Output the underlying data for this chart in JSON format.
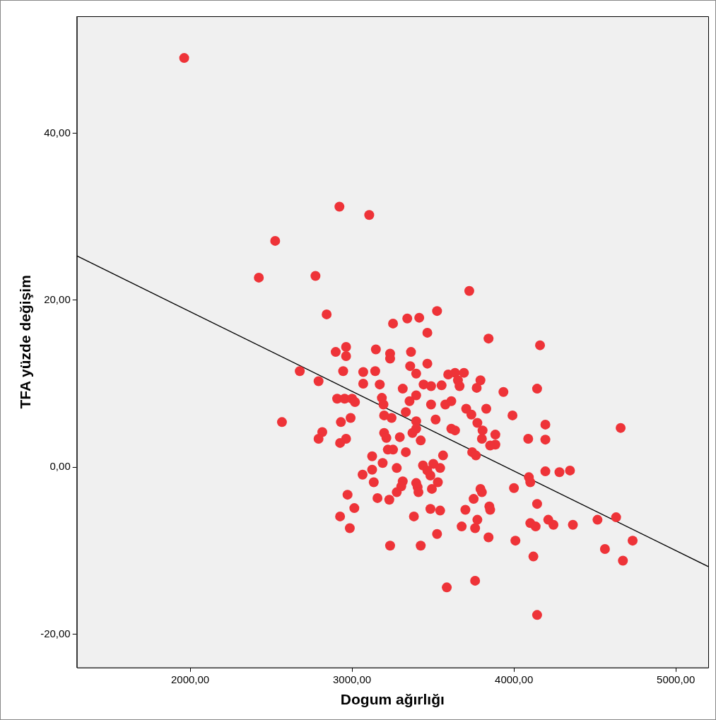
{
  "chart_data": {
    "type": "scatter",
    "xlabel": "Dogum ağırlığı",
    "ylabel": "TFA yüzde değişim",
    "xlim": [
      1300,
      5200
    ],
    "ylim": [
      -24,
      54
    ],
    "xticks": [
      {
        "value": 2000,
        "label": "2000,00"
      },
      {
        "value": 3000,
        "label": "3000,00"
      },
      {
        "value": 4000,
        "label": "4000,00"
      },
      {
        "value": 5000,
        "label": "5000,00"
      }
    ],
    "yticks": [
      {
        "value": -20,
        "label": "-20,00"
      },
      {
        "value": 0,
        "label": "0,00"
      },
      {
        "value": 20,
        "label": "20,00"
      },
      {
        "value": 40,
        "label": "40,00"
      }
    ],
    "legend": false,
    "marker": "circle",
    "series": [
      {
        "type": "scatter",
        "color": "#ee3338",
        "x": [
          1963,
          2922,
          3106,
          2525,
          2424,
          2774,
          3724,
          2843,
          3525,
          3253,
          3341,
          3415,
          3465,
          3843,
          4161,
          2963,
          2899,
          3147,
          3235,
          2963,
          3364,
          3235,
          3465,
          3359,
          2677,
          2945,
          3069,
          3143,
          3396,
          3594,
          3636,
          3691,
          3654,
          3793,
          2793,
          3069,
          3171,
          3442,
          3488,
          3553,
          3664,
          3770,
          4143,
          3935,
          3313,
          3396,
          3184,
          2908,
          2954,
          3000,
          3018,
          3355,
          3194,
          3488,
          3576,
          3613,
          3829,
          3705,
          3737,
          3991,
          3332,
          3198,
          3244,
          2567,
          2931,
          2991,
          3396,
          3516,
          3774,
          4194,
          3613,
          3198,
          2816,
          3373,
          3396,
          3806,
          3885,
          3636,
          2793,
          2963,
          3212,
          3295,
          3424,
          3802,
          4088,
          4194,
          2926,
          3885,
          3853,
          3221,
          3253,
          3332,
          3742,
          3765,
          3562,
          3124,
          3189,
          3438,
          3502,
          3276,
          3124,
          3465,
          3544,
          4194,
          4346,
          4281,
          3065,
          3484,
          4092,
          4101,
          3134,
          3313,
          3396,
          3530,
          3304,
          3405,
          3493,
          3793,
          4000,
          3276,
          3410,
          3802,
          2972,
          3157,
          3230,
          3751,
          4143,
          3848,
          3853,
          3014,
          3484,
          3544,
          3700,
          3382,
          2926,
          4631,
          3774,
          4516,
          4212,
          4101,
          4244,
          4364,
          4134,
          3677,
          3760,
          2986,
          3525,
          3843,
          4009,
          4733,
          3235,
          3424,
          4562,
          4120,
          4673,
          3760,
          3585,
          4143,
          4659
        ],
        "values": [
          49.0,
          31.2,
          30.2,
          27.1,
          22.7,
          22.9,
          21.1,
          18.3,
          18.7,
          17.2,
          17.8,
          17.9,
          16.1,
          15.4,
          14.6,
          14.4,
          13.8,
          14.1,
          13.6,
          13.3,
          13.8,
          13.0,
          12.4,
          12.1,
          11.5,
          11.5,
          11.4,
          11.5,
          11.2,
          11.1,
          11.3,
          11.3,
          10.4,
          10.4,
          10.3,
          10.0,
          9.9,
          9.9,
          9.7,
          9.8,
          9.7,
          9.5,
          9.4,
          9.0,
          9.4,
          8.6,
          8.3,
          8.2,
          8.2,
          8.2,
          7.8,
          7.9,
          7.5,
          7.5,
          7.5,
          7.9,
          7.0,
          7.0,
          6.3,
          6.2,
          6.6,
          6.2,
          5.9,
          5.4,
          5.4,
          5.9,
          5.5,
          5.7,
          5.3,
          5.1,
          4.6,
          4.1,
          4.2,
          4.1,
          4.6,
          4.4,
          3.9,
          4.4,
          3.4,
          3.4,
          3.5,
          3.6,
          3.2,
          3.4,
          3.4,
          3.3,
          2.9,
          2.7,
          2.6,
          2.1,
          2.1,
          1.8,
          1.8,
          1.4,
          1.4,
          1.3,
          0.5,
          0.2,
          0.4,
          -0.1,
          -0.3,
          -0.4,
          -0.1,
          -0.5,
          -0.4,
          -0.6,
          -0.9,
          -1.0,
          -1.2,
          -1.8,
          -1.8,
          -1.7,
          -1.9,
          -1.8,
          -2.3,
          -2.4,
          -2.6,
          -2.6,
          -2.5,
          -3.0,
          -3.0,
          -3.0,
          -3.3,
          -3.7,
          -3.9,
          -3.8,
          -4.4,
          -4.7,
          -5.1,
          -4.9,
          -5.0,
          -5.2,
          -5.1,
          -5.9,
          -5.9,
          -6.0,
          -6.3,
          -6.3,
          -6.3,
          -6.7,
          -6.9,
          -6.9,
          -7.1,
          -7.1,
          -7.3,
          -7.3,
          -8.0,
          -8.4,
          -8.8,
          -8.8,
          -9.4,
          -9.4,
          -9.8,
          -10.7,
          -11.2,
          -13.6,
          -14.4,
          -17.7,
          4.7
        ]
      },
      {
        "type": "line",
        "color": "#000000",
        "marker": "none",
        "x": [
          1300,
          5200
        ],
        "values": [
          25.3,
          -11.9
        ]
      }
    ]
  }
}
